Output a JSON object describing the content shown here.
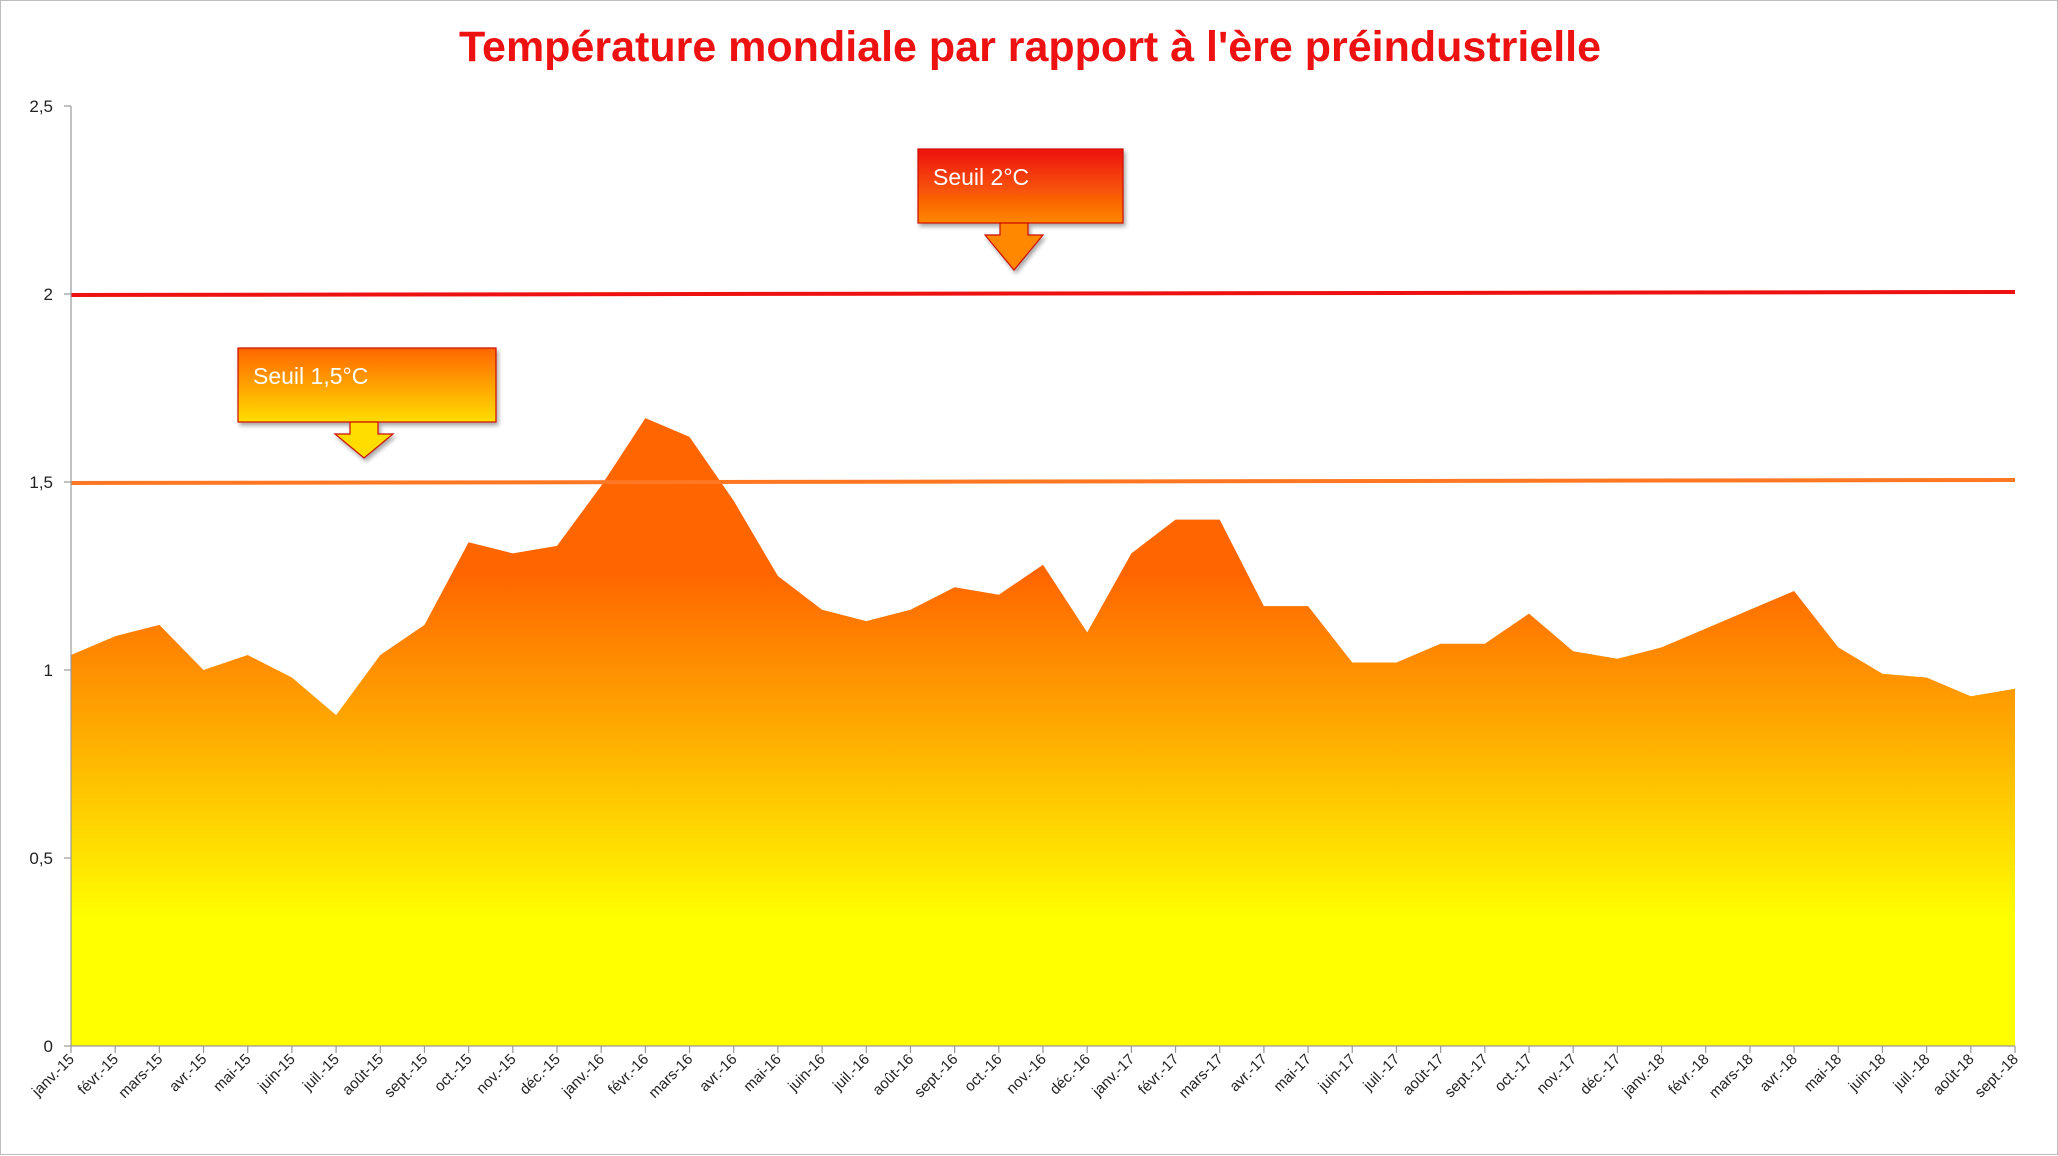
{
  "chart_data": {
    "type": "area",
    "title": "Température mondiale par rapport à l'ère préindustrielle",
    "xlabel": "",
    "ylabel": "",
    "ylim": [
      0,
      2.5
    ],
    "yticks": [
      "0",
      "0,5",
      "1",
      "1,5",
      "2",
      "2,5"
    ],
    "ytick_values": [
      0,
      0.5,
      1,
      1.5,
      2,
      2.5
    ],
    "grid": false,
    "categories": [
      "janv.-15",
      "févr.-15",
      "mars-15",
      "avr.-15",
      "mai-15",
      "juin-15",
      "juil.-15",
      "août-15",
      "sept.-15",
      "oct.-15",
      "nov.-15",
      "déc.-15",
      "janv.-16",
      "févr.-16",
      "mars-16",
      "avr.-16",
      "mai-16",
      "juin-16",
      "juil.-16",
      "août-16",
      "sept.-16",
      "oct.-16",
      "nov.-16",
      "déc.-16",
      "janv.-17",
      "févr.-17",
      "mars-17",
      "avr.-17",
      "mai-17",
      "juin-17",
      "juil.-17",
      "août-17",
      "sept.-17",
      "oct.-17",
      "nov.-17",
      "déc.-17",
      "janv.-18",
      "févr.-18",
      "mars-18",
      "avr.-18",
      "mai-18",
      "juin-18",
      "juil.-18",
      "août-18",
      "sept.-18"
    ],
    "series": [
      {
        "name": "",
        "values": [
          1.04,
          1.09,
          1.12,
          1.0,
          1.04,
          0.98,
          0.88,
          1.04,
          1.12,
          1.34,
          1.31,
          1.33,
          1.49,
          1.67,
          1.62,
          1.45,
          1.25,
          1.16,
          1.13,
          1.16,
          1.22,
          1.2,
          1.28,
          1.1,
          1.31,
          1.4,
          1.4,
          1.17,
          1.17,
          1.02,
          1.02,
          1.07,
          1.07,
          1.15,
          1.05,
          1.03,
          1.06,
          1.11,
          1.16,
          1.21,
          1.06,
          0.99,
          0.98,
          0.93,
          0.95
        ],
        "fill_gradient": [
          "#ff6600",
          "#ffff00"
        ]
      }
    ],
    "thresholds": [
      {
        "value": 2.0,
        "color": "#ee1111"
      },
      {
        "value": 1.5,
        "color": "#ff7722"
      }
    ],
    "annotations": [
      {
        "text": "Seuil 2°C",
        "target_value": 2.0,
        "fill_top": "#ee1111",
        "fill_bottom": "#ff8800"
      },
      {
        "text": "Seuil 1,5°C",
        "target_value": 1.5,
        "fill_top": "#ff6600",
        "fill_bottom": "#ffdd00"
      }
    ],
    "colors": {
      "title": "#ee1111",
      "axis": "#999999"
    }
  }
}
